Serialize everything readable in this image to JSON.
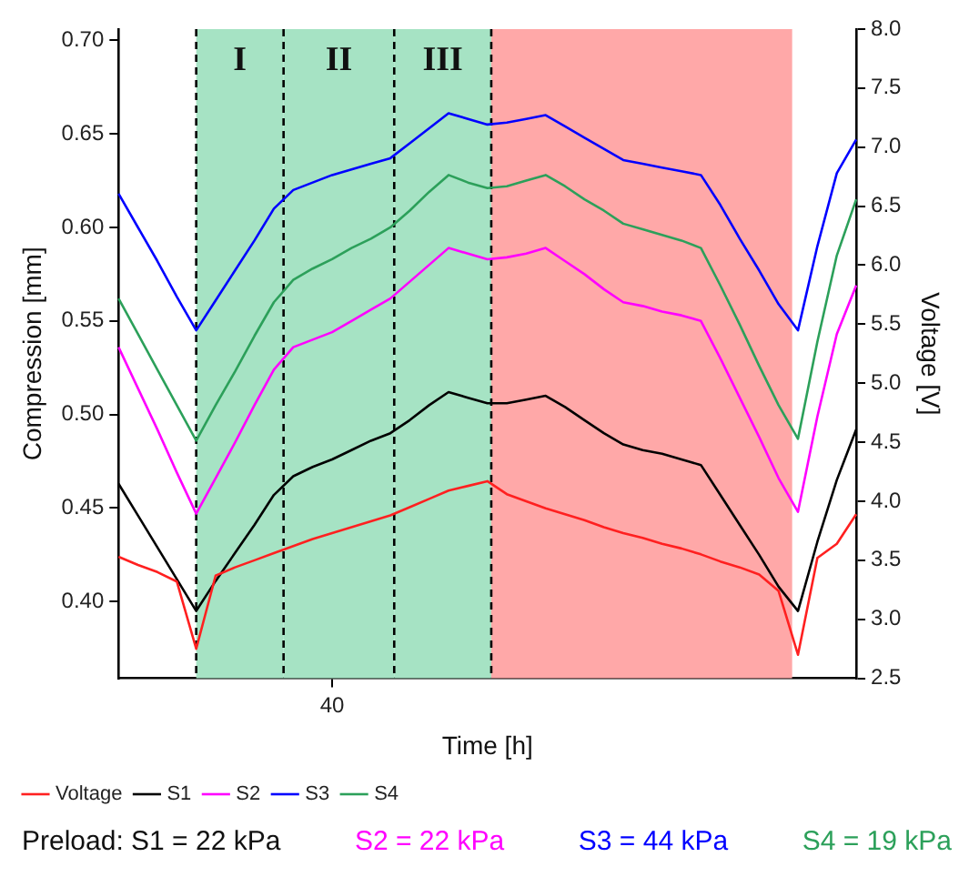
{
  "chart_data": {
    "type": "line",
    "xlabel": "Time [h]",
    "ylabel": "Compression [mm]",
    "y2label": "Voltage [V]",
    "categories": [
      null,
      null,
      null,
      null,
      null,
      null,
      null,
      null,
      null,
      null,
      null,
      "40",
      null,
      null,
      null,
      null,
      null,
      null,
      null,
      null,
      null,
      null,
      null,
      null,
      null,
      null,
      null,
      null,
      null,
      null,
      null,
      null,
      null,
      null,
      null,
      null,
      null,
      null,
      null
    ],
    "ylim": [
      0.359,
      0.706
    ],
    "yticks": [
      {
        "value": 0.4,
        "label": "0.40"
      },
      {
        "value": 0.45,
        "label": "0.45"
      },
      {
        "value": 0.5,
        "label": "0.50"
      },
      {
        "value": 0.55,
        "label": "0.55"
      },
      {
        "value": 0.6,
        "label": "0.60"
      },
      {
        "value": 0.65,
        "label": "0.65"
      },
      {
        "value": 0.7,
        "label": "0.70"
      }
    ],
    "y2lim": [
      2.5,
      8.0
    ],
    "y2ticks": [
      {
        "value": 2.5,
        "label": "2.5"
      },
      {
        "value": 3,
        "label": "3.0"
      },
      {
        "value": 3.5,
        "label": "3.5"
      },
      {
        "value": 4,
        "label": "4.0"
      },
      {
        "value": 4.5,
        "label": "4.5"
      },
      {
        "value": 5,
        "label": "5.0"
      },
      {
        "value": 5.5,
        "label": "5.5"
      },
      {
        "value": 6,
        "label": "6.0"
      },
      {
        "value": 6.5,
        "label": "6.5"
      },
      {
        "value": 7,
        "label": "7.0"
      },
      {
        "value": 7.5,
        "label": "7.5"
      },
      {
        "value": 8,
        "label": "8.0"
      }
    ],
    "grid": false,
    "legend": "bottom",
    "marker": "none",
    "series": [
      {
        "name": "Voltage",
        "color": "#ff2020",
        "axis": "y2",
        "values": [
          3.53,
          3.46,
          3.4,
          3.32,
          2.75,
          3.37,
          3.44,
          3.5,
          3.56,
          3.62,
          3.68,
          3.73,
          3.78,
          3.83,
          3.88,
          3.95,
          4.02,
          4.09,
          4.13,
          4.17,
          4.06,
          4.0,
          3.94,
          3.89,
          3.84,
          3.78,
          3.73,
          3.69,
          3.64,
          3.6,
          3.55,
          3.49,
          3.44,
          3.38,
          3.24,
          2.7,
          3.52,
          3.64,
          3.89
        ]
      },
      {
        "name": "S1",
        "color": "#000000",
        "values": [
          0.463,
          0.446,
          0.429,
          0.412,
          0.395,
          0.411,
          0.426,
          0.441,
          0.457,
          0.467,
          0.472,
          0.476,
          0.481,
          0.486,
          0.49,
          0.497,
          0.505,
          0.512,
          0.509,
          0.506,
          0.506,
          0.508,
          0.51,
          0.504,
          0.497,
          0.49,
          0.484,
          0.481,
          0.479,
          0.476,
          0.473,
          0.457,
          0.441,
          0.425,
          0.408,
          0.395,
          0.432,
          0.465,
          0.492
        ]
      },
      {
        "name": "S2",
        "color": "#ff00ff",
        "values": [
          0.536,
          0.514,
          0.492,
          0.469,
          0.447,
          0.466,
          0.485,
          0.505,
          0.524,
          0.536,
          0.54,
          0.544,
          0.55,
          0.556,
          0.562,
          0.571,
          0.58,
          0.589,
          0.586,
          0.583,
          0.584,
          0.586,
          0.589,
          0.582,
          0.575,
          0.567,
          0.56,
          0.558,
          0.555,
          0.553,
          0.55,
          0.53,
          0.509,
          0.488,
          0.466,
          0.448,
          0.499,
          0.543,
          0.569
        ]
      },
      {
        "name": "S3",
        "color": "#0000ff",
        "values": [
          0.618,
          0.6,
          0.582,
          0.563,
          0.545,
          0.561,
          0.577,
          0.593,
          0.61,
          0.62,
          0.624,
          0.628,
          0.631,
          0.634,
          0.637,
          0.645,
          0.653,
          0.661,
          0.658,
          0.655,
          0.656,
          0.658,
          0.66,
          0.654,
          0.648,
          0.642,
          0.636,
          0.634,
          0.632,
          0.63,
          0.628,
          0.612,
          0.594,
          0.577,
          0.559,
          0.545,
          0.59,
          0.629,
          0.647
        ]
      },
      {
        "name": "S4",
        "color": "#2ca05a",
        "values": [
          0.562,
          0.543,
          0.524,
          0.505,
          0.486,
          0.505,
          0.523,
          0.542,
          0.56,
          0.572,
          0.578,
          0.583,
          0.589,
          0.594,
          0.6,
          0.609,
          0.619,
          0.628,
          0.624,
          0.621,
          0.622,
          0.625,
          0.628,
          0.622,
          0.615,
          0.609,
          0.602,
          0.599,
          0.596,
          0.593,
          0.589,
          0.569,
          0.548,
          0.526,
          0.505,
          0.487,
          0.539,
          0.585,
          0.615
        ]
      }
    ],
    "annotations": [
      "I",
      "II",
      "III",
      "Preload: S1 = 22 kPa",
      "S2 = 22 kPa",
      "S3 = 44 kPa",
      "S4 = 19 kPa"
    ]
  }
}
